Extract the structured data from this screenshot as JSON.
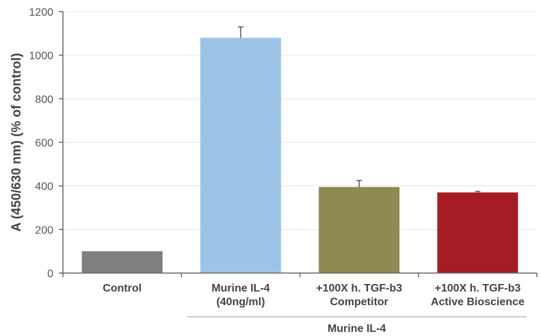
{
  "chart_data": {
    "type": "bar",
    "title": "",
    "xlabel": "",
    "ylabel": "A (450/630 nm) (% of control)",
    "ylim": [
      0,
      1200
    ],
    "yticks": [
      0,
      200,
      400,
      600,
      800,
      1000,
      1200
    ],
    "grid": true,
    "categories": [
      [
        "Control"
      ],
      [
        "Murine IL-4",
        "(40ng/ml)"
      ],
      [
        "+100X h. TGF-b3",
        "Competitor"
      ],
      [
        "+100X h. TGF-b3",
        "Active Bioscience"
      ]
    ],
    "values": [
      100,
      1080,
      395,
      370
    ],
    "errors": [
      0,
      50,
      30,
      5
    ],
    "colors": [
      "#7f7f7f",
      "#9dc3e6",
      "#8e8a52",
      "#a51c24"
    ],
    "group": {
      "label": "Murine IL-4",
      "from": 1,
      "to": 3
    }
  }
}
